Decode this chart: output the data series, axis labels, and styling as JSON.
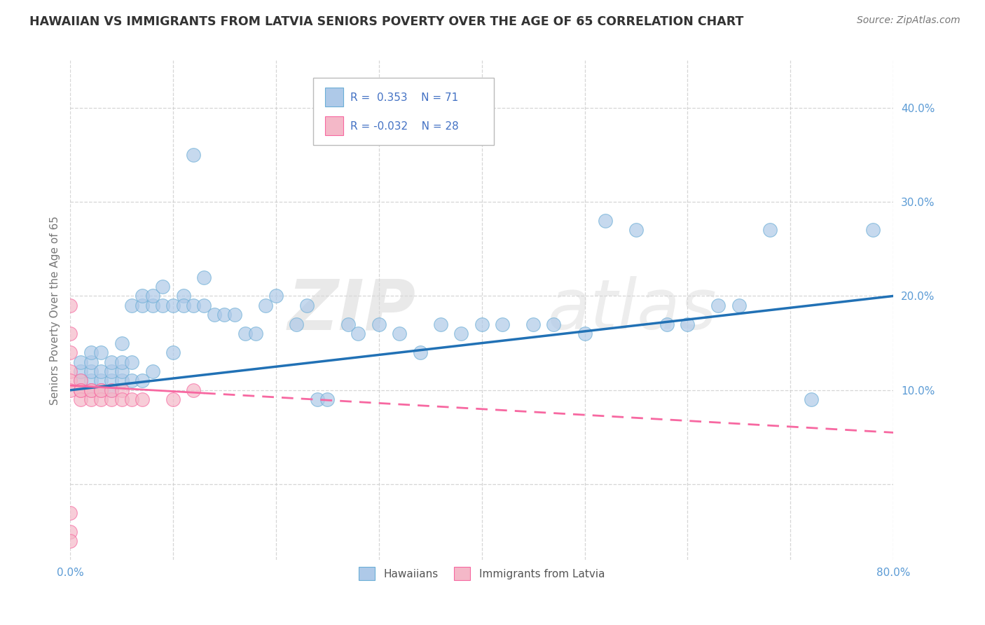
{
  "title": "HAWAIIAN VS IMMIGRANTS FROM LATVIA SENIORS POVERTY OVER THE AGE OF 65 CORRELATION CHART",
  "source": "Source: ZipAtlas.com",
  "ylabel": "Seniors Poverty Over the Age of 65",
  "xlim": [
    0.0,
    0.8
  ],
  "ylim": [
    -0.08,
    0.45
  ],
  "xticks": [
    0.0,
    0.1,
    0.2,
    0.3,
    0.4,
    0.5,
    0.6,
    0.7,
    0.8
  ],
  "yticks": [
    0.0,
    0.1,
    0.2,
    0.3,
    0.4
  ],
  "hawaiian_R": 0.353,
  "hawaiian_N": 71,
  "latvia_R": -0.032,
  "latvia_N": 28,
  "hawaiian_color": "#aec9e8",
  "latvia_color": "#f4b8c8",
  "hawaiian_edge_color": "#6baed6",
  "latvia_edge_color": "#f768a1",
  "hawaiian_line_color": "#2171b5",
  "latvia_line_color": "#f768a1",
  "watermark_color": "#e0e0e0",
  "background_color": "#ffffff",
  "grid_color": "#cccccc",
  "legend_color": "#4472c4",
  "hawaiian_x": [
    0.01,
    0.01,
    0.01,
    0.02,
    0.02,
    0.02,
    0.02,
    0.02,
    0.03,
    0.03,
    0.03,
    0.03,
    0.04,
    0.04,
    0.04,
    0.04,
    0.05,
    0.05,
    0.05,
    0.05,
    0.06,
    0.06,
    0.06,
    0.07,
    0.07,
    0.07,
    0.08,
    0.08,
    0.08,
    0.09,
    0.09,
    0.1,
    0.1,
    0.11,
    0.11,
    0.12,
    0.12,
    0.13,
    0.13,
    0.14,
    0.15,
    0.16,
    0.17,
    0.18,
    0.19,
    0.2,
    0.22,
    0.23,
    0.24,
    0.25,
    0.27,
    0.28,
    0.3,
    0.32,
    0.34,
    0.36,
    0.38,
    0.4,
    0.42,
    0.45,
    0.47,
    0.5,
    0.52,
    0.55,
    0.58,
    0.6,
    0.63,
    0.65,
    0.68,
    0.72,
    0.78
  ],
  "hawaiian_y": [
    0.11,
    0.12,
    0.13,
    0.1,
    0.11,
    0.12,
    0.13,
    0.14,
    0.1,
    0.11,
    0.12,
    0.14,
    0.1,
    0.11,
    0.12,
    0.13,
    0.11,
    0.12,
    0.13,
    0.15,
    0.11,
    0.13,
    0.19,
    0.11,
    0.19,
    0.2,
    0.12,
    0.19,
    0.2,
    0.19,
    0.21,
    0.14,
    0.19,
    0.2,
    0.19,
    0.19,
    0.35,
    0.19,
    0.22,
    0.18,
    0.18,
    0.18,
    0.16,
    0.16,
    0.19,
    0.2,
    0.17,
    0.19,
    0.09,
    0.09,
    0.17,
    0.16,
    0.17,
    0.16,
    0.14,
    0.17,
    0.16,
    0.17,
    0.17,
    0.17,
    0.17,
    0.16,
    0.28,
    0.27,
    0.17,
    0.17,
    0.19,
    0.19,
    0.27,
    0.09,
    0.27
  ],
  "latvia_x": [
    0.0,
    0.0,
    0.0,
    0.0,
    0.0,
    0.0,
    0.0,
    0.0,
    0.0,
    0.01,
    0.01,
    0.01,
    0.01,
    0.01,
    0.02,
    0.02,
    0.02,
    0.03,
    0.03,
    0.03,
    0.04,
    0.04,
    0.05,
    0.05,
    0.06,
    0.07,
    0.1,
    0.12
  ],
  "latvia_y": [
    0.19,
    0.16,
    0.14,
    0.12,
    0.11,
    0.1,
    -0.03,
    -0.05,
    -0.06,
    0.1,
    0.11,
    0.1,
    0.09,
    0.1,
    0.1,
    0.09,
    0.1,
    0.1,
    0.09,
    0.1,
    0.09,
    0.1,
    0.1,
    0.09,
    0.09,
    0.09,
    0.09,
    0.1
  ],
  "hawaii_trend_x0": 0.0,
  "hawaii_trend_y0": 0.1,
  "hawaii_trend_x1": 0.8,
  "hawaii_trend_y1": 0.2,
  "latvia_trend_x0": 0.0,
  "latvia_trend_y0": 0.105,
  "latvia_trend_x1": 0.8,
  "latvia_trend_y1": 0.055
}
